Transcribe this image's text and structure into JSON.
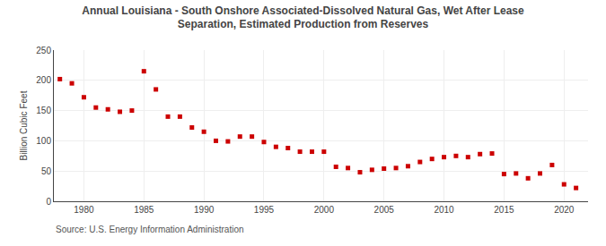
{
  "chart_data": {
    "type": "scatter",
    "title": "Annual Louisiana - South Onshore Associated-Dissolved Natural Gas, Wet After Lease\nSeparation, Estimated Production from Reserves",
    "ylabel": "Billion Cubic Feet",
    "annotations": [
      "Source: U.S. Energy Information Administration"
    ],
    "x": [
      1978,
      1979,
      1980,
      1981,
      1982,
      1983,
      1984,
      1985,
      1986,
      1987,
      1988,
      1989,
      1990,
      1991,
      1992,
      1993,
      1994,
      1995,
      1996,
      1997,
      1998,
      1999,
      2000,
      2001,
      2002,
      2003,
      2004,
      2005,
      2006,
      2007,
      2008,
      2009,
      2010,
      2011,
      2012,
      2013,
      2014,
      2015,
      2016,
      2017,
      2018,
      2019,
      2020,
      2021
    ],
    "values": [
      202,
      195,
      172,
      155,
      152,
      148,
      150,
      215,
      185,
      140,
      140,
      122,
      115,
      100,
      99,
      107,
      107,
      98,
      90,
      88,
      82,
      82,
      82,
      57,
      55,
      48,
      52,
      54,
      55,
      58,
      65,
      70,
      73,
      75,
      73,
      78,
      79,
      45,
      46,
      38,
      46,
      60,
      28,
      22
    ],
    "color": "#cc0000",
    "marker": "square",
    "xlim": [
      1977.5,
      2022
    ],
    "xticks": [
      1980,
      1985,
      1990,
      1995,
      2000,
      2005,
      2010,
      2015,
      2020
    ],
    "ylim": [
      0,
      250
    ],
    "yticks": [
      0,
      50,
      100,
      150,
      200,
      250
    ],
    "grid": true
  }
}
